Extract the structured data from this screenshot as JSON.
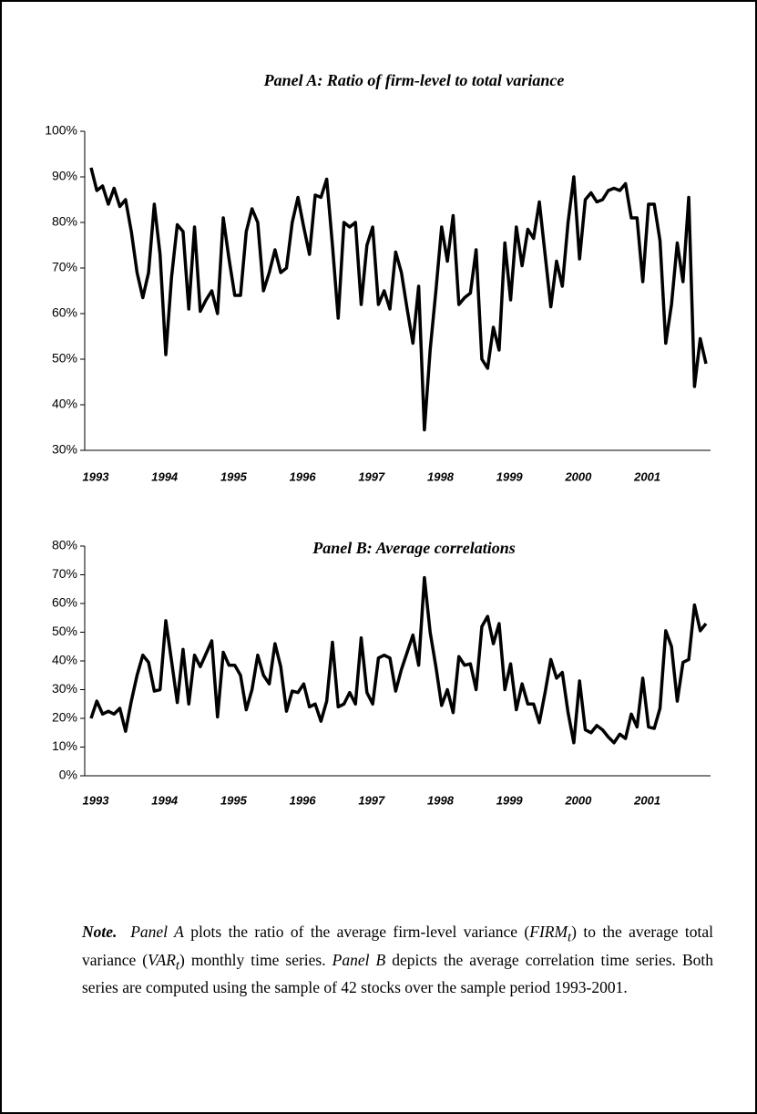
{
  "chart_data": [
    {
      "type": "line",
      "title": "Panel A: Ratio of firm-level to total variance",
      "categories": [
        "1993",
        null,
        null,
        null,
        null,
        null,
        null,
        null,
        null,
        null,
        null,
        null,
        "1994",
        null,
        null,
        null,
        null,
        null,
        null,
        null,
        null,
        null,
        null,
        null,
        "1995",
        null,
        null,
        null,
        null,
        null,
        null,
        null,
        null,
        null,
        null,
        null,
        "1996",
        null,
        null,
        null,
        null,
        null,
        null,
        null,
        null,
        null,
        null,
        null,
        "1997",
        null,
        null,
        null,
        null,
        null,
        null,
        null,
        null,
        null,
        null,
        null,
        "1998",
        null,
        null,
        null,
        null,
        null,
        null,
        null,
        null,
        null,
        null,
        null,
        "1999",
        null,
        null,
        null,
        null,
        null,
        null,
        null,
        null,
        null,
        null,
        null,
        "2000",
        null,
        null,
        null,
        null,
        null,
        null,
        null,
        null,
        null,
        null,
        null,
        "2001",
        null,
        null,
        null,
        null,
        null,
        null,
        null,
        null,
        null,
        null,
        null
      ],
      "values": [
        92,
        87,
        88,
        84,
        87.5,
        83.5,
        85,
        78,
        69,
        63.5,
        69,
        84,
        73,
        51,
        68,
        79.5,
        78,
        61,
        79,
        60.5,
        63,
        65,
        60,
        81,
        72,
        64,
        64,
        78,
        83,
        80,
        65,
        69,
        74,
        69,
        70,
        80,
        85.5,
        79,
        73,
        86,
        85.5,
        89.5,
        75,
        59,
        80,
        79,
        80,
        62,
        75,
        79,
        62,
        65,
        61,
        73.5,
        69,
        61,
        53.5,
        66,
        34.5,
        52,
        65,
        79,
        71.5,
        81.5,
        62,
        63.5,
        64.5,
        74,
        50,
        48,
        57,
        52,
        75.5,
        63,
        79,
        70.5,
        78.5,
        76.5,
        84.5,
        73,
        61.5,
        71.5,
        66,
        80,
        90,
        72,
        85,
        86.5,
        84.5,
        85,
        87,
        87.5,
        87,
        88.5,
        81,
        81,
        67,
        84,
        84,
        76,
        53.5,
        62,
        75.5,
        67,
        85.5,
        44,
        54.5,
        49
      ],
      "color": "#000000",
      "ylim": [
        30,
        100
      ],
      "yticks": [
        {
          "value": 30,
          "label": "30%"
        },
        {
          "value": 40,
          "label": "40%"
        },
        {
          "value": 50,
          "label": "50%"
        },
        {
          "value": 60,
          "label": "60%"
        },
        {
          "value": 70,
          "label": "70%"
        },
        {
          "value": 80,
          "label": "80%"
        },
        {
          "value": 90,
          "label": "90%"
        },
        {
          "value": 100,
          "label": "100%"
        }
      ]
    },
    {
      "type": "line",
      "title": "Panel B: Average correlations",
      "categories": [
        "1993",
        null,
        null,
        null,
        null,
        null,
        null,
        null,
        null,
        null,
        null,
        null,
        "1994",
        null,
        null,
        null,
        null,
        null,
        null,
        null,
        null,
        null,
        null,
        null,
        "1995",
        null,
        null,
        null,
        null,
        null,
        null,
        null,
        null,
        null,
        null,
        null,
        "1996",
        null,
        null,
        null,
        null,
        null,
        null,
        null,
        null,
        null,
        null,
        null,
        "1997",
        null,
        null,
        null,
        null,
        null,
        null,
        null,
        null,
        null,
        null,
        null,
        "1998",
        null,
        null,
        null,
        null,
        null,
        null,
        null,
        null,
        null,
        null,
        null,
        "1999",
        null,
        null,
        null,
        null,
        null,
        null,
        null,
        null,
        null,
        null,
        null,
        "2000",
        null,
        null,
        null,
        null,
        null,
        null,
        null,
        null,
        null,
        null,
        null,
        "2001",
        null,
        null,
        null,
        null,
        null,
        null,
        null,
        null,
        null,
        null,
        null
      ],
      "values": [
        20,
        26,
        21.5,
        22.5,
        21.5,
        23.5,
        15.5,
        26,
        35,
        42,
        39.5,
        29.5,
        30,
        54,
        40,
        25.5,
        44,
        25,
        42,
        38,
        42.5,
        47,
        20.5,
        43,
        38.5,
        38.5,
        35,
        23,
        30,
        42,
        35,
        32,
        46,
        38,
        22.5,
        29.5,
        29,
        32,
        24,
        25,
        19,
        26,
        46.5,
        24,
        25,
        29,
        25,
        48,
        29,
        25,
        41,
        42,
        41,
        29.5,
        37,
        43,
        49,
        38.5,
        69,
        50,
        38,
        24.5,
        30,
        22,
        41.5,
        38.5,
        39,
        30,
        52,
        55.5,
        46,
        53,
        30,
        39,
        23,
        32,
        25,
        25,
        18.5,
        29,
        40.5,
        34,
        36,
        22,
        11.5,
        33,
        16,
        15,
        17.5,
        16,
        13.5,
        11.5,
        14.5,
        13,
        21.5,
        17,
        34,
        17,
        16.5,
        23.5,
        50.5,
        45,
        26,
        39.5,
        40.5,
        59.5,
        50.5,
        53
      ],
      "color": "#000000",
      "ylim": [
        0,
        80
      ],
      "yticks": [
        {
          "value": 0,
          "label": "0%"
        },
        {
          "value": 10,
          "label": "10%"
        },
        {
          "value": 20,
          "label": "20%"
        },
        {
          "value": 30,
          "label": "30%"
        },
        {
          "value": 40,
          "label": "40%"
        },
        {
          "value": 50,
          "label": "50%"
        },
        {
          "value": 60,
          "label": "60%"
        },
        {
          "value": 70,
          "label": "70%"
        },
        {
          "value": 80,
          "label": "80%"
        }
      ]
    }
  ],
  "note": [
    "Note.",
    "Panel A",
    " plots the ratio of the average firm-level variance (",
    "FIRM",
    "t",
    ") to the average total variance (",
    "VAR",
    "t",
    ") monthly time series. ",
    "Panel B",
    " depicts the average correlation time series. Both series are computed using the sample of 42 stocks over the sample period 1993-2001."
  ]
}
